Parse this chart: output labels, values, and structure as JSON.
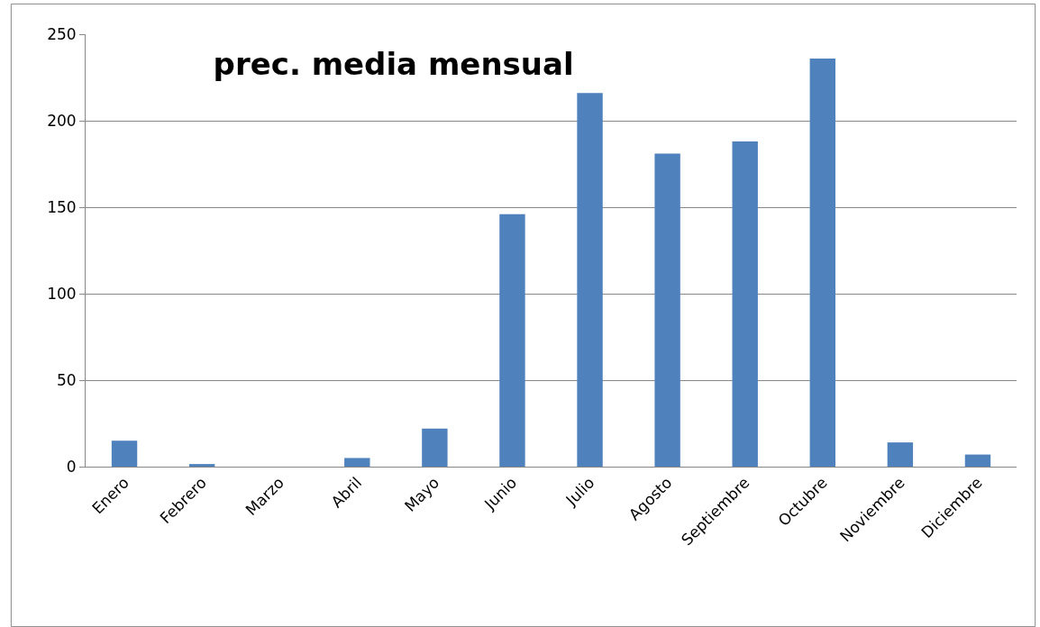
{
  "chart_data": {
    "type": "bar",
    "title": "prec. media mensual",
    "categories": [
      "Enero",
      "Febrero",
      "Marzo",
      "Abril",
      "Mayo",
      "Junio",
      "Julio",
      "Agosto",
      "Septiembre",
      "Octubre",
      "Noviembre",
      "Diciembre"
    ],
    "values": [
      15,
      1.5,
      0,
      5,
      22,
      146,
      216,
      181,
      188,
      236,
      14,
      7
    ],
    "color": "#4f81bd",
    "ylim": [
      0,
      250
    ],
    "yticks": [
      0,
      50,
      100,
      150,
      200,
      250
    ],
    "grid": "y"
  }
}
